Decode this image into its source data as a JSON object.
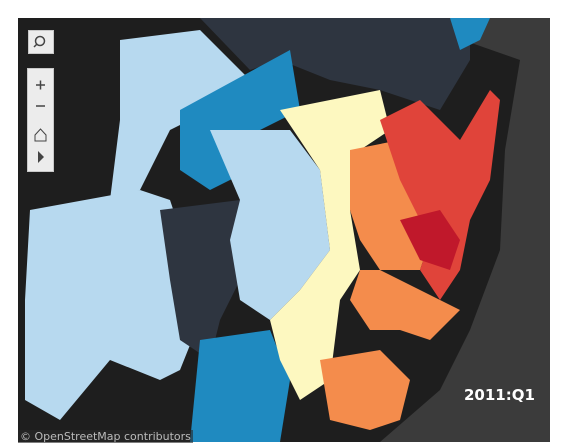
{
  "map": {
    "period_label": "2011:Q1",
    "attribution": "© OpenStreetMap contributors"
  }
}
